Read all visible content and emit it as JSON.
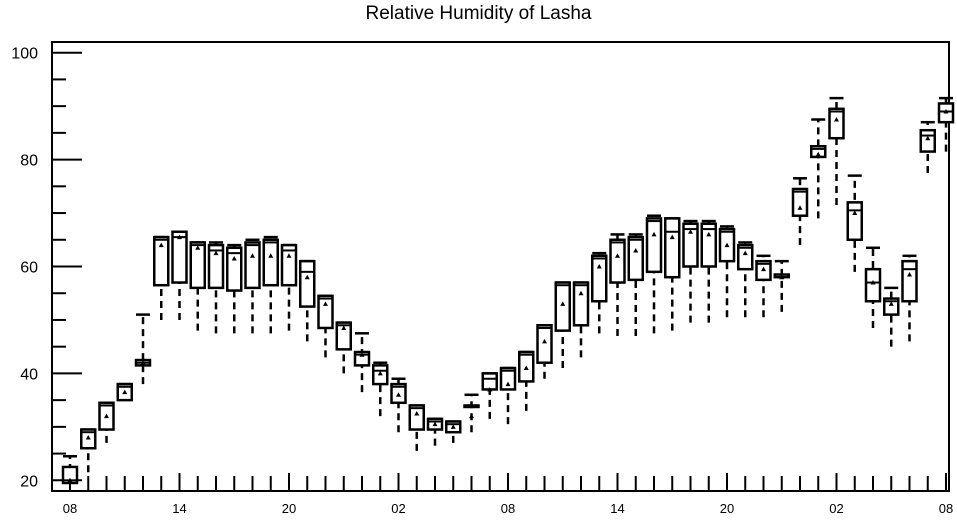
{
  "chart_data": {
    "type": "boxplot",
    "title": "Relative Humidity of Lasha",
    "xlabel": "",
    "ylabel": "",
    "ylim": [
      18,
      102
    ],
    "y_ticks": [
      20,
      40,
      60,
      80,
      100
    ],
    "x_ticks": [
      {
        "pos": 0,
        "label": "08"
      },
      {
        "pos": 6,
        "label": "14"
      },
      {
        "pos": 12,
        "label": "20"
      },
      {
        "pos": 18,
        "label": "02"
      },
      {
        "pos": 24,
        "label": "08"
      },
      {
        "pos": 30,
        "label": "14"
      },
      {
        "pos": 36,
        "label": "20"
      },
      {
        "pos": 42,
        "label": "02"
      },
      {
        "pos": 48,
        "label": "08"
      }
    ],
    "x_minor_count": 49,
    "grid": false,
    "boxes": [
      {
        "x": 0,
        "q1": 19.5,
        "q3": 22.5,
        "median": 20,
        "whisker_low": 19.5,
        "whisker_high": 24.5,
        "mean": 20
      },
      {
        "x": 1,
        "q1": 26,
        "q3": 29.5,
        "median": 29,
        "whisker_low": 21.5,
        "whisker_high": 29.5,
        "mean": 28
      },
      {
        "x": 2,
        "q1": 29.5,
        "q3": 34.5,
        "median": 34,
        "whisker_low": 27,
        "whisker_high": 34.5,
        "mean": 32
      },
      {
        "x": 3,
        "q1": 35,
        "q3": 38,
        "median": 37.5,
        "whisker_low": 35,
        "whisker_high": 38,
        "mean": 36.5
      },
      {
        "x": 4,
        "q1": 41.5,
        "q3": 42.5,
        "median": 42,
        "whisker_low": 38,
        "whisker_high": 51,
        "mean": 42
      },
      {
        "x": 5,
        "q1": 56.5,
        "q3": 65.5,
        "median": 65,
        "whisker_low": 50,
        "whisker_high": 65.5,
        "mean": 64
      },
      {
        "x": 6,
        "q1": 57,
        "q3": 66.5,
        "median": 65.5,
        "whisker_low": 50,
        "whisker_high": 66.5,
        "mean": 65.5
      },
      {
        "x": 7,
        "q1": 56,
        "q3": 64.5,
        "median": 64,
        "whisker_low": 48,
        "whisker_high": 64.5,
        "mean": 63.5
      },
      {
        "x": 8,
        "q1": 56,
        "q3": 64,
        "median": 63,
        "whisker_low": 47.5,
        "whisker_high": 64.5,
        "mean": 62.5
      },
      {
        "x": 9,
        "q1": 55.5,
        "q3": 63.5,
        "median": 62.5,
        "whisker_low": 47.5,
        "whisker_high": 64,
        "mean": 61.5
      },
      {
        "x": 10,
        "q1": 56,
        "q3": 64.5,
        "median": 64,
        "whisker_low": 47.5,
        "whisker_high": 65,
        "mean": 62
      },
      {
        "x": 11,
        "q1": 56.5,
        "q3": 65,
        "median": 64.5,
        "whisker_low": 47.5,
        "whisker_high": 65.5,
        "mean": 62
      },
      {
        "x": 12,
        "q1": 56.5,
        "q3": 64,
        "median": 63,
        "whisker_low": 48,
        "whisker_high": 64,
        "mean": 62
      },
      {
        "x": 13,
        "q1": 52.5,
        "q3": 61,
        "median": 59,
        "whisker_low": 46,
        "whisker_high": 61,
        "mean": 58
      },
      {
        "x": 14,
        "q1": 48.5,
        "q3": 54.5,
        "median": 54,
        "whisker_low": 43,
        "whisker_high": 54.5,
        "mean": 53
      },
      {
        "x": 15,
        "q1": 44.5,
        "q3": 49.5,
        "median": 49,
        "whisker_low": 40,
        "whisker_high": 49.5,
        "mean": 48.5
      },
      {
        "x": 16,
        "q1": 41.5,
        "q3": 44,
        "median": 43.5,
        "whisker_low": 36.5,
        "whisker_high": 47.5,
        "mean": 43.5
      },
      {
        "x": 17,
        "q1": 38,
        "q3": 41.5,
        "median": 40.5,
        "whisker_low": 32,
        "whisker_high": 42,
        "mean": 40
      },
      {
        "x": 18,
        "q1": 34.5,
        "q3": 38,
        "median": 37.5,
        "whisker_low": 29,
        "whisker_high": 39,
        "mean": 36
      },
      {
        "x": 19,
        "q1": 29.5,
        "q3": 34,
        "median": 33.5,
        "whisker_low": 25.5,
        "whisker_high": 34,
        "mean": 32.5
      },
      {
        "x": 20,
        "q1": 29.5,
        "q3": 31.5,
        "median": 31,
        "whisker_low": 26.5,
        "whisker_high": 31.5,
        "mean": 30.5
      },
      {
        "x": 21,
        "q1": 29,
        "q3": 31,
        "median": 30.5,
        "whisker_low": 27,
        "whisker_high": 31,
        "mean": 30
      },
      {
        "x": 22,
        "q1": 34,
        "q3": 34,
        "median": 34,
        "whisker_low": 29,
        "whisker_high": 36,
        "mean": 32
      },
      {
        "x": 23,
        "q1": 37,
        "q3": 40,
        "median": 39,
        "whisker_low": 31.5,
        "whisker_high": 40,
        "mean": 37
      },
      {
        "x": 24,
        "q1": 37,
        "q3": 41,
        "median": 40.5,
        "whisker_low": 30.5,
        "whisker_high": 41,
        "mean": 38
      },
      {
        "x": 25,
        "q1": 38.5,
        "q3": 44,
        "median": 43.5,
        "whisker_low": 33,
        "whisker_high": 44,
        "mean": 41
      },
      {
        "x": 26,
        "q1": 42,
        "q3": 49,
        "median": 48.5,
        "whisker_low": 39,
        "whisker_high": 49,
        "mean": 46
      },
      {
        "x": 27,
        "q1": 48,
        "q3": 57,
        "median": 56.5,
        "whisker_low": 41,
        "whisker_high": 57,
        "mean": 53
      },
      {
        "x": 28,
        "q1": 49,
        "q3": 57,
        "median": 56.5,
        "whisker_low": 43,
        "whisker_high": 57,
        "mean": 55
      },
      {
        "x": 29,
        "q1": 53.5,
        "q3": 62,
        "median": 61.5,
        "whisker_low": 47.5,
        "whisker_high": 62.5,
        "mean": 60
      },
      {
        "x": 30,
        "q1": 57,
        "q3": 65,
        "median": 64.5,
        "whisker_low": 47,
        "whisker_high": 66,
        "mean": 62
      },
      {
        "x": 31,
        "q1": 57.5,
        "q3": 65.5,
        "median": 65,
        "whisker_low": 47,
        "whisker_high": 66,
        "mean": 63
      },
      {
        "x": 32,
        "q1": 59,
        "q3": 69,
        "median": 68.5,
        "whisker_low": 47.5,
        "whisker_high": 69.5,
        "mean": 66
      },
      {
        "x": 33,
        "q1": 58,
        "q3": 69,
        "median": 66.5,
        "whisker_low": 48,
        "whisker_high": 69,
        "mean": 65.5
      },
      {
        "x": 34,
        "q1": 60,
        "q3": 68,
        "median": 67,
        "whisker_low": 49.5,
        "whisker_high": 68.5,
        "mean": 66.5
      },
      {
        "x": 35,
        "q1": 60,
        "q3": 68,
        "median": 67,
        "whisker_low": 49.5,
        "whisker_high": 68.5,
        "mean": 66
      },
      {
        "x": 36,
        "q1": 61,
        "q3": 67,
        "median": 66.5,
        "whisker_low": 50.5,
        "whisker_high": 67.5,
        "mean": 64
      },
      {
        "x": 37,
        "q1": 59.5,
        "q3": 64,
        "median": 63.5,
        "whisker_low": 50.5,
        "whisker_high": 64.5,
        "mean": 62.5
      },
      {
        "x": 38,
        "q1": 57.5,
        "q3": 61,
        "median": 60.5,
        "whisker_low": 50.5,
        "whisker_high": 62,
        "mean": 59.5
      },
      {
        "x": 39,
        "q1": 58,
        "q3": 58.5,
        "median": 58.5,
        "whisker_low": 51.5,
        "whisker_high": 61,
        "mean": 58
      },
      {
        "x": 40,
        "q1": 69.5,
        "q3": 74.5,
        "median": 74,
        "whisker_low": 64,
        "whisker_high": 76.5,
        "mean": 71
      },
      {
        "x": 41,
        "q1": 80.5,
        "q3": 82.5,
        "median": 82,
        "whisker_low": 69,
        "whisker_high": 87.5,
        "mean": 81
      },
      {
        "x": 42,
        "q1": 84,
        "q3": 89.5,
        "median": 89,
        "whisker_low": 71.5,
        "whisker_high": 91.5,
        "mean": 87.5
      },
      {
        "x": 43,
        "q1": 65,
        "q3": 72,
        "median": 70.5,
        "whisker_low": 59,
        "whisker_high": 77,
        "mean": 70
      },
      {
        "x": 44,
        "q1": 53.5,
        "q3": 59.5,
        "median": 57,
        "whisker_low": 48.5,
        "whisker_high": 63.5,
        "mean": 57
      },
      {
        "x": 45,
        "q1": 51,
        "q3": 54,
        "median": 53.5,
        "whisker_low": 45,
        "whisker_high": 56,
        "mean": 53
      },
      {
        "x": 46,
        "q1": 53.5,
        "q3": 61,
        "median": 59.5,
        "whisker_low": 46,
        "whisker_high": 62,
        "mean": 58.5
      },
      {
        "x": 47,
        "q1": 81.5,
        "q3": 85.5,
        "median": 84.5,
        "whisker_low": 77.5,
        "whisker_high": 87,
        "mean": 84
      },
      {
        "x": 48,
        "q1": 87,
        "q3": 90.5,
        "median": 89,
        "whisker_low": 81.5,
        "whisker_high": 91.5,
        "mean": 89
      }
    ]
  }
}
